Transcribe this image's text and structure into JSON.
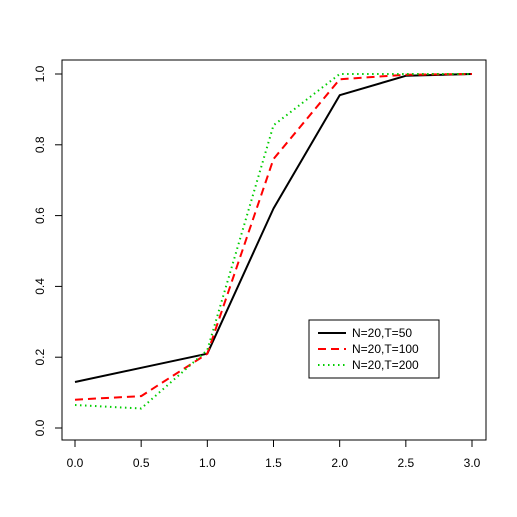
{
  "chart_data": {
    "type": "line",
    "title": "",
    "xlabel": "",
    "ylabel": "",
    "x": [
      0.0,
      0.5,
      1.0,
      1.5,
      2.0,
      2.5,
      3.0
    ],
    "xlim": [
      0.0,
      3.0
    ],
    "ylim": [
      0.0,
      1.0
    ],
    "x_ticks": [
      "0.0",
      "0.5",
      "1.0",
      "1.5",
      "2.0",
      "2.5",
      "3.0"
    ],
    "y_ticks": [
      "0.0",
      "0.2",
      "0.4",
      "0.6",
      "0.8",
      "1.0"
    ],
    "grid": false,
    "legend_position": "lower-right",
    "series": [
      {
        "name": "N=20,T=50",
        "color": "#000000",
        "style": "solid",
        "values": [
          0.13,
          0.17,
          0.21,
          0.62,
          0.94,
          0.995,
          1.0
        ]
      },
      {
        "name": "N=20,T=100",
        "color": "#ff0000",
        "style": "dashed",
        "values": [
          0.08,
          0.09,
          0.21,
          0.76,
          0.985,
          0.998,
          1.0
        ]
      },
      {
        "name": "N=20,T=200",
        "color": "#00cd00",
        "style": "dotted",
        "values": [
          0.065,
          0.055,
          0.22,
          0.855,
          1.0,
          1.0,
          1.0
        ]
      }
    ]
  }
}
